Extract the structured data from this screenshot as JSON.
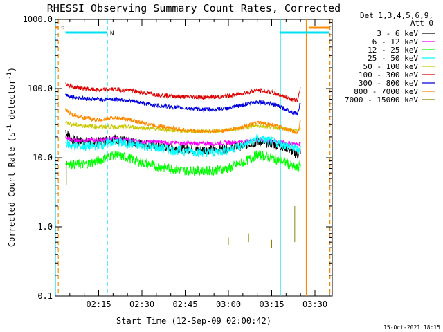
{
  "chart_data": {
    "type": "line",
    "title": "RHESSI Observing Summary Count Rates, Corrected",
    "xlabel": "Start Time (12-Sep-09 02:00:42)",
    "ylabel_main": "Corrected Count Rate (s",
    "ylabel_sup1": "-1",
    "ylabel_mid": " detector",
    "ylabel_sup2": "-1",
    "ylabel_end": ")",
    "yscale": "log",
    "ylim": [
      0.1,
      1000.0
    ],
    "xlim_minutes": [
      0,
      96
    ],
    "y_ticks": [
      {
        "value": 1000.0,
        "label": "1000.0"
      },
      {
        "value": 100.0,
        "label": "100.0"
      },
      {
        "value": 10.0,
        "label": "10.0"
      },
      {
        "value": 1.0,
        "label": "1.0"
      },
      {
        "value": 0.1,
        "label": "0.1"
      }
    ],
    "x_ticks": [
      {
        "minute": 15,
        "label": "02:15"
      },
      {
        "minute": 30,
        "label": "02:30"
      },
      {
        "minute": 45,
        "label": "02:45"
      },
      {
        "minute": 60,
        "label": "03:00"
      },
      {
        "minute": 75,
        "label": "03:15"
      },
      {
        "minute": 90,
        "label": "03:30"
      }
    ],
    "legend_header": [
      "Det 1,3,4,5,6,9,",
      "Att 0"
    ],
    "legend_placement": "right",
    "series": [
      {
        "name": "3 - 6 keV",
        "color": "#000000",
        "x": [
          3.5,
          4,
          6,
          10,
          15,
          20,
          25,
          30,
          35,
          40,
          45,
          50,
          55,
          60,
          65,
          70,
          75,
          80,
          82,
          84,
          85
        ],
        "y": [
          25,
          22,
          18,
          17,
          17,
          19,
          17,
          16,
          15,
          14,
          13.5,
          13,
          13,
          14,
          15,
          17,
          16,
          14,
          12.5,
          11,
          13
        ]
      },
      {
        "name": "6 - 12 keV",
        "color": "#ff00ff",
        "x": [
          3.5,
          4,
          6,
          10,
          15,
          20,
          25,
          30,
          35,
          40,
          45,
          50,
          55,
          60,
          65,
          70,
          75,
          80,
          82,
          84,
          85
        ],
        "y": [
          20,
          19,
          18,
          18,
          18,
          19,
          18,
          17,
          17,
          16.5,
          16,
          16,
          16,
          16.5,
          17,
          18,
          17.5,
          16.5,
          16,
          15.5,
          16
        ]
      },
      {
        "name": "12 - 25 keV",
        "color": "#00ff00",
        "x": [
          3.5,
          4,
          6,
          10,
          15,
          20,
          25,
          30,
          35,
          40,
          45,
          50,
          55,
          60,
          65,
          70,
          75,
          80,
          82,
          84,
          85
        ],
        "y": [
          9,
          8.5,
          8,
          8,
          9,
          11,
          10,
          8.5,
          7.5,
          7,
          6.5,
          6.5,
          6.5,
          7,
          8.5,
          11,
          10,
          8.5,
          7.5,
          7,
          8
        ]
      },
      {
        "name": "25 - 50 keV",
        "color": "#00ffff",
        "x": [
          3.5,
          4,
          6,
          10,
          15,
          20,
          25,
          30,
          35,
          40,
          45,
          50,
          55,
          60,
          65,
          70,
          75,
          80,
          82,
          84,
          85
        ],
        "y": [
          17,
          16,
          15,
          14.5,
          15,
          17,
          16,
          15,
          14,
          13,
          12.5,
          12,
          12,
          13,
          15,
          19,
          17,
          15,
          14,
          13,
          14
        ]
      },
      {
        "name": "50 - 100 keV",
        "color": "#c8c800",
        "x": [
          3.5,
          4,
          6,
          10,
          15,
          20,
          25,
          30,
          35,
          40,
          45,
          50,
          55,
          60,
          65,
          70,
          75,
          80,
          82,
          84,
          85
        ],
        "y": [
          33,
          32,
          30,
          29,
          28,
          28,
          28,
          27,
          26,
          25,
          24.5,
          24,
          24,
          25,
          27,
          29,
          28,
          26,
          25,
          24,
          26
        ]
      },
      {
        "name": "100 - 300 keV",
        "color": "#dd0000",
        "x": [
          3.5,
          4,
          6,
          10,
          15,
          20,
          25,
          30,
          35,
          40,
          45,
          50,
          55,
          60,
          65,
          70,
          75,
          80,
          82,
          84,
          85
        ],
        "y": [
          125,
          115,
          105,
          100,
          95,
          98,
          95,
          88,
          82,
          78,
          76,
          75,
          75,
          78,
          85,
          95,
          88,
          75,
          70,
          68,
          100
        ]
      },
      {
        "name": "300 - 800 keV",
        "color": "#0000dd",
        "x": [
          3.5,
          4,
          6,
          10,
          15,
          20,
          25,
          30,
          35,
          40,
          45,
          50,
          55,
          60,
          65,
          70,
          75,
          80,
          82,
          84,
          85
        ],
        "y": [
          85,
          80,
          75,
          72,
          70,
          70,
          68,
          62,
          57,
          54,
          52,
          50,
          50,
          52,
          58,
          65,
          60,
          50,
          46,
          44,
          65
        ]
      },
      {
        "name": "800 - 7000 keV",
        "color": "#ff8800",
        "x": [
          3.5,
          4,
          6,
          10,
          15,
          20,
          25,
          30,
          35,
          40,
          45,
          50,
          55,
          60,
          65,
          70,
          75,
          80,
          82,
          84,
          85
        ],
        "y": [
          50,
          46,
          42,
          38,
          35,
          38,
          36,
          32,
          29,
          27,
          25,
          24,
          24,
          25,
          28,
          32,
          30,
          26,
          24,
          23,
          35
        ]
      },
      {
        "name": "7000 - 15000 keV",
        "color": "#888800",
        "x": [],
        "y": []
      }
    ],
    "bars": [
      {
        "label": "S",
        "color": "#ff8800",
        "x": [
          0,
          1
        ]
      },
      {
        "label": "N",
        "color": "#00e0f0",
        "x": [
          3.5,
          18
        ]
      },
      {
        "label": "",
        "color": "#00e0f0",
        "x": [
          78,
          95
        ]
      }
    ],
    "vertical_lines": [
      {
        "minute": 0,
        "color": "#00e0f0",
        "style": "solid"
      },
      {
        "minute": 1,
        "color": "#ff8800",
        "style": "dashed"
      },
      {
        "minute": 18,
        "color": "#00e0f0",
        "style": "dashed"
      },
      {
        "minute": 78,
        "color": "#00e0f0",
        "style": "solid"
      },
      {
        "minute": 87,
        "color": "#ff8800",
        "style": "solid"
      },
      {
        "minute": 95,
        "color": "#00e0f0",
        "style": "dashed"
      },
      {
        "minute": 95.2,
        "color": "#ff8800",
        "style": "dashed"
      }
    ],
    "footer_date": "15-Oct-2021 18:15"
  }
}
